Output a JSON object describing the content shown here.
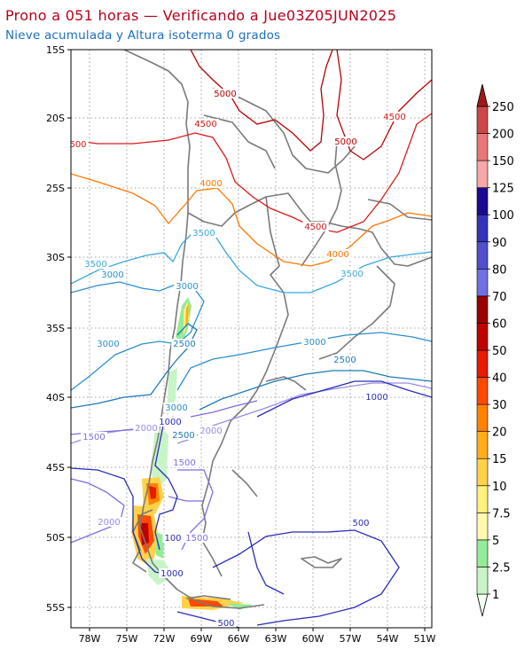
{
  "titles": {
    "main": "Prono a 051 horas — Verificando a Jue03Z05JUN2025",
    "sub": "Nieve acumulada y Altura isoterma 0 grados"
  },
  "colors": {
    "title_main": "#b8001a",
    "title_sub": "#1a6fbf",
    "border": "#7a7a7a"
  },
  "axes": {
    "lat_labels": [
      "15S",
      "20S",
      "25S",
      "30S",
      "35S",
      "40S",
      "45S",
      "50S",
      "55S"
    ],
    "lon_labels": [
      "78W",
      "75W",
      "72W",
      "69W",
      "66W",
      "63W",
      "60W",
      "57W",
      "54W",
      "51W"
    ],
    "lat_range": [
      "15S",
      "56S"
    ],
    "lon_range": [
      "80W",
      "50W"
    ],
    "grid": "dotted"
  },
  "contour_labels": [
    {
      "text": "5000",
      "color": "#b80000"
    },
    {
      "text": "4500",
      "color": "#d81a1a"
    },
    {
      "text": "4500",
      "color": "#d81a1a"
    },
    {
      "text": "5000",
      "color": "#b80000"
    },
    {
      "text": "500",
      "color": "#d81a1a"
    },
    {
      "text": "4000",
      "color": "#ff7700"
    },
    {
      "text": "4500",
      "color": "#d81a1a"
    },
    {
      "text": "4000",
      "color": "#ff7700"
    },
    {
      "text": "3500",
      "color": "#3aa8dd"
    },
    {
      "text": "3500",
      "color": "#3aa8dd"
    },
    {
      "text": "3000",
      "color": "#2b8fcf"
    },
    {
      "text": "3500",
      "color": "#3aa8dd"
    },
    {
      "text": "3000",
      "color": "#2b8fcf"
    },
    {
      "text": "3000",
      "color": "#2b8fcf"
    },
    {
      "text": "2500",
      "color": "#1f7ab8"
    },
    {
      "text": "3000",
      "color": "#2b8fcf"
    },
    {
      "text": "2500",
      "color": "#1f7ab8"
    },
    {
      "text": "1000",
      "color": "#2a2ab8"
    },
    {
      "text": "3000",
      "color": "#2b8fcf"
    },
    {
      "text": "1000",
      "color": "#2a2ab8"
    },
    {
      "text": "2000",
      "color": "#9a8ae8"
    },
    {
      "text": "2500",
      "color": "#1f7ab8"
    },
    {
      "text": "2000",
      "color": "#9a8ae8"
    },
    {
      "text": "1500",
      "color": "#7f6ee0"
    },
    {
      "text": "1500",
      "color": "#7f6ee0"
    },
    {
      "text": "2000",
      "color": "#9a8ae8"
    },
    {
      "text": "100",
      "color": "#2a2ab8"
    },
    {
      "text": "1500",
      "color": "#7f6ee0"
    },
    {
      "text": "1000",
      "color": "#2a2ab8"
    },
    {
      "text": "500",
      "color": "#2a2ab8"
    },
    {
      "text": "500",
      "color": "#2a2ab8"
    }
  ],
  "colorbar": {
    "labels": [
      "1",
      "2.5",
      "5",
      "7.5",
      "10",
      "15",
      "20",
      "30",
      "40",
      "50",
      "60",
      "70",
      "80",
      "90",
      "100",
      "125",
      "150",
      "200",
      "250"
    ],
    "colors": [
      "#f0fff0",
      "#c8f5c8",
      "#96eb96",
      "#fffab0",
      "#fff080",
      "#ffd24a",
      "#ffae1a",
      "#ff8200",
      "#ff4a00",
      "#e81a00",
      "#c00000",
      "#9a0000",
      "#7070e0",
      "#5050cc",
      "#3434b8",
      "#1a0a90",
      "#f4a8a8",
      "#e87878",
      "#cc4848",
      "#a01818"
    ]
  }
}
